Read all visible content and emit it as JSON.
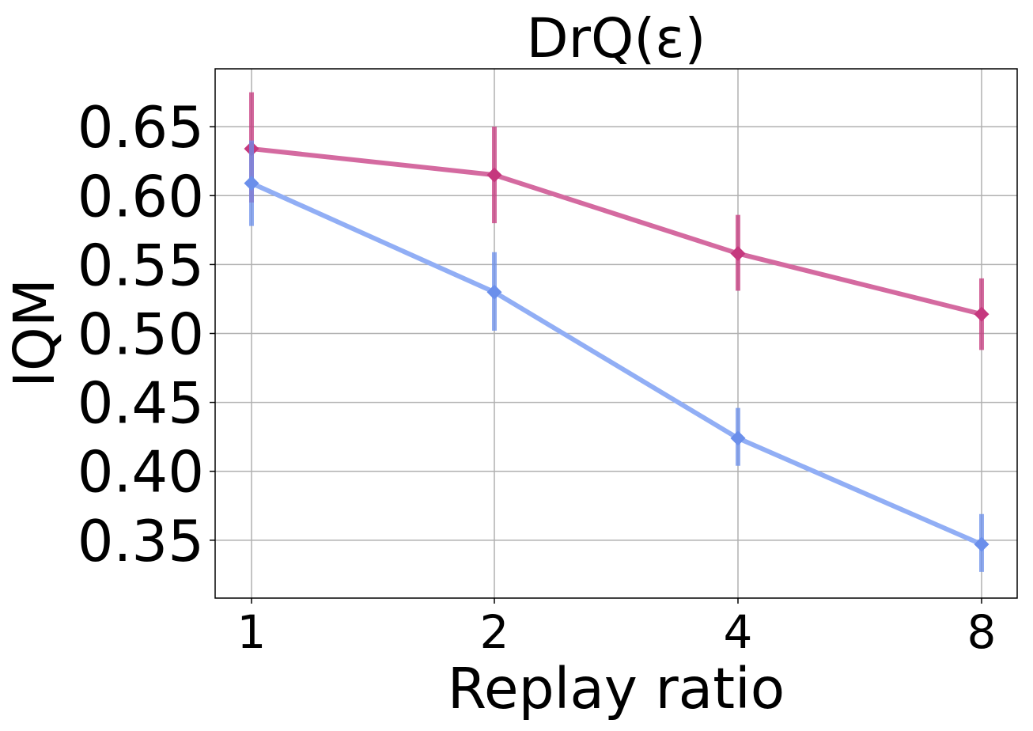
{
  "chart_data": {
    "type": "line",
    "title": "DrQ(ε)",
    "xlabel": "Replay ratio",
    "ylabel": "IQM",
    "x": [
      "1",
      "2",
      "4",
      "8"
    ],
    "ylim": [
      0.308,
      0.692
    ],
    "yticks": [
      "0.35",
      "0.40",
      "0.45",
      "0.50",
      "0.55",
      "0.60",
      "0.65"
    ],
    "ytick_values": [
      0.35,
      0.4,
      0.45,
      0.5,
      0.55,
      0.6,
      0.65
    ],
    "grid": true,
    "series": [
      {
        "color": "#C5387E",
        "line_color": "#D46AA0",
        "values": [
          0.634,
          0.615,
          0.558,
          0.514
        ],
        "err_low": [
          0.595,
          0.58,
          0.531,
          0.488
        ],
        "err_high": [
          0.675,
          0.65,
          0.586,
          0.54
        ]
      },
      {
        "color": "#6B8FEB",
        "line_color": "#91AEF5",
        "values": [
          0.609,
          0.53,
          0.424,
          0.347
        ],
        "err_low": [
          0.578,
          0.502,
          0.404,
          0.327
        ],
        "err_high": [
          0.64,
          0.559,
          0.446,
          0.369
        ]
      }
    ]
  }
}
